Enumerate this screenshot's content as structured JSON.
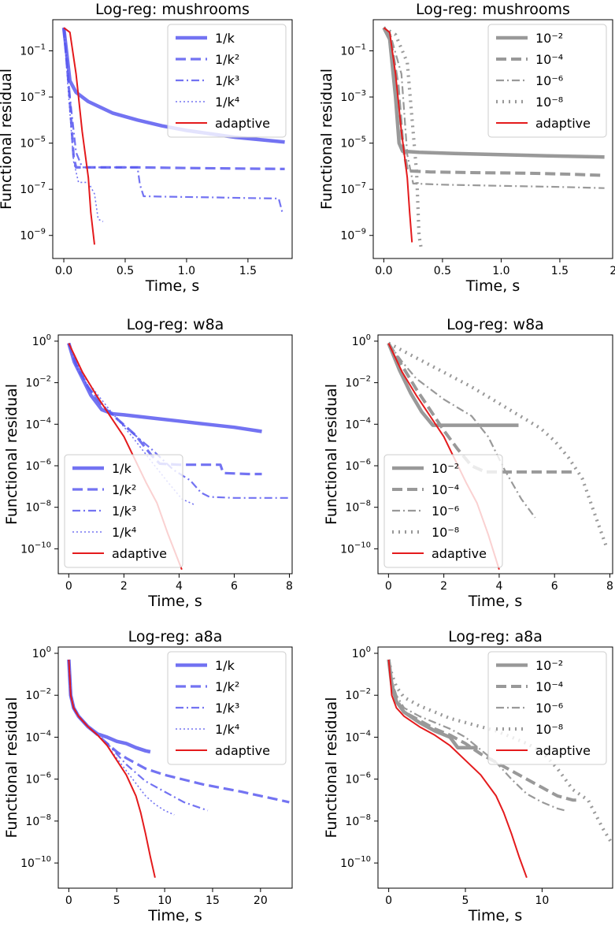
{
  "figure": {
    "ylabel": "Functional residual",
    "xlabel": "Time, s"
  },
  "legend_labels": {
    "blue": [
      "1/k",
      "1/k²",
      "1/k³",
      "1/k⁴",
      "adaptive"
    ],
    "gray": [
      "10⁻²",
      "10⁻⁴",
      "10⁻⁶",
      "10⁻⁸",
      "adaptive"
    ]
  },
  "colors": {
    "blue": "#5a5af0",
    "gray": "#999999",
    "red": "#e41a1c"
  },
  "chart_data": [
    {
      "type": "line",
      "title": "Log-reg: mushrooms",
      "xlabel": "Time, s",
      "ylabel": "Functional residual",
      "xscale": "linear",
      "yscale": "log",
      "xlim": [
        -0.09,
        1.86
      ],
      "ylim_exp": [
        -10,
        0.35
      ],
      "xticks": [
        0.0,
        0.5,
        1.0,
        1.5
      ],
      "xtick_labels": [
        "0.0",
        "0.5",
        "1.0",
        "1.5"
      ],
      "yticks_exp": [
        -9,
        -7,
        -5,
        -3,
        -1
      ],
      "legend_position": "upper right",
      "legend_style": "blue",
      "series": [
        {
          "name": "1/k",
          "x": [
            0.0,
            0.05,
            0.1,
            0.2,
            0.4,
            0.6,
            0.8,
            1.0,
            1.2,
            1.4,
            1.6,
            1.8
          ],
          "y_exp": [
            0.0,
            -2.3,
            -2.8,
            -3.2,
            -3.7,
            -4.0,
            -4.25,
            -4.45,
            -4.6,
            -4.75,
            -4.85,
            -4.95
          ]
        },
        {
          "name": "1/k²",
          "x": [
            0.0,
            0.04,
            0.08,
            0.1,
            0.3,
            0.6,
            1.0,
            1.4,
            1.8
          ],
          "y_exp": [
            0.0,
            -2.5,
            -5.6,
            -6.05,
            -6.05,
            -6.05,
            -6.08,
            -6.1,
            -6.12
          ]
        },
        {
          "name": "1/k³",
          "x": [
            0.0,
            0.05,
            0.1,
            0.15,
            0.5,
            0.6,
            0.62,
            0.65,
            0.8,
            1.2,
            1.5,
            1.75,
            1.78
          ],
          "y_exp": [
            0.0,
            -3.0,
            -5.4,
            -6.05,
            -6.05,
            -6.05,
            -6.8,
            -7.3,
            -7.32,
            -7.35,
            -7.38,
            -7.4,
            -8.0
          ]
        },
        {
          "name": "1/k⁴",
          "x": [
            0.0,
            0.04,
            0.08,
            0.12,
            0.2,
            0.25,
            0.28,
            0.32
          ],
          "y_exp": [
            0.0,
            -3.0,
            -5.8,
            -6.7,
            -6.7,
            -7.2,
            -8.3,
            -8.4
          ]
        },
        {
          "name": "adaptive",
          "x": [
            0.0,
            0.05,
            0.1,
            0.15,
            0.2,
            0.22,
            0.25
          ],
          "y_exp": [
            0.0,
            -0.2,
            -2.0,
            -4.5,
            -6.5,
            -8.0,
            -9.4
          ]
        }
      ]
    },
    {
      "type": "line",
      "title": "Log-reg: mushrooms",
      "xlabel": "Time, s",
      "ylabel": "Functional residual",
      "xscale": "linear",
      "yscale": "log",
      "xlim": [
        -0.09,
        1.95
      ],
      "ylim_exp": [
        -10,
        0.35
      ],
      "xticks": [
        0.0,
        0.5,
        1.0,
        1.5,
        2.0
      ],
      "xtick_labels": [
        "0.0",
        "0.5",
        "1.0",
        "1.5",
        "2.0"
      ],
      "yticks_exp": [
        -9,
        -7,
        -5,
        -3,
        -1
      ],
      "legend_position": "upper right",
      "legend_style": "gray",
      "series": [
        {
          "name": "10⁻²",
          "x": [
            0.0,
            0.05,
            0.1,
            0.13,
            0.16,
            0.3,
            0.6,
            1.0,
            1.4,
            1.88
          ],
          "y_exp": [
            0.0,
            -0.5,
            -3.0,
            -5.0,
            -5.35,
            -5.4,
            -5.45,
            -5.5,
            -5.55,
            -5.6
          ]
        },
        {
          "name": "10⁻⁴",
          "x": [
            0.0,
            0.05,
            0.12,
            0.16,
            0.2,
            0.4,
            0.8,
            1.2,
            1.6,
            1.88
          ],
          "y_exp": [
            0.0,
            -0.3,
            -2.5,
            -5.0,
            -6.2,
            -6.25,
            -6.28,
            -6.3,
            -6.35,
            -6.4
          ]
        },
        {
          "name": "10⁻⁶",
          "x": [
            0.0,
            0.05,
            0.15,
            0.2,
            0.25,
            0.5,
            1.0,
            1.5,
            1.88
          ],
          "y_exp": [
            0.0,
            -0.2,
            -2.0,
            -5.5,
            -6.75,
            -6.8,
            -6.85,
            -6.9,
            -6.95
          ]
        },
        {
          "name": "10⁻⁸",
          "x": [
            0.0,
            0.1,
            0.2,
            0.28,
            0.3,
            0.32
          ],
          "y_exp": [
            0.0,
            -0.3,
            -1.5,
            -6.3,
            -9.0,
            -9.6
          ]
        },
        {
          "name": "adaptive",
          "x": [
            0.0,
            0.05,
            0.1,
            0.15,
            0.2,
            0.22,
            0.24
          ],
          "y_exp": [
            0.0,
            -0.2,
            -2.0,
            -4.5,
            -6.5,
            -8.0,
            -9.3
          ]
        }
      ]
    },
    {
      "type": "line",
      "title": "Log-reg: w8a",
      "xlabel": "Time, s",
      "ylabel": "Functional residual",
      "xscale": "linear",
      "yscale": "log",
      "xlim": [
        -0.38,
        8.1
      ],
      "ylim_exp": [
        -11.2,
        0.3
      ],
      "xticks": [
        0,
        2,
        4,
        6,
        8
      ],
      "xtick_labels": [
        "0",
        "2",
        "4",
        "6",
        "8"
      ],
      "yticks_exp": [
        0,
        -2,
        -4,
        -6,
        -8,
        -10
      ],
      "legend_position": "lower left",
      "legend_style": "blue",
      "series": [
        {
          "name": "1/k",
          "x": [
            0.0,
            0.2,
            0.5,
            0.8,
            1.2,
            1.6,
            2.0,
            3.0,
            4.0,
            5.0,
            6.0,
            7.0
          ],
          "y_exp": [
            -0.1,
            -1.0,
            -1.8,
            -2.6,
            -3.3,
            -3.5,
            -3.55,
            -3.7,
            -3.85,
            -4.0,
            -4.15,
            -4.35
          ]
        },
        {
          "name": "1/k²",
          "x": [
            0.0,
            0.3,
            0.7,
            1.2,
            1.8,
            2.4,
            3.0,
            3.3,
            4.0,
            5.0,
            5.5,
            5.6,
            6.5,
            7.0
          ],
          "y_exp": [
            -0.1,
            -1.2,
            -2.2,
            -3.1,
            -3.8,
            -4.5,
            -5.5,
            -5.9,
            -5.95,
            -5.95,
            -5.95,
            -6.35,
            -6.4,
            -6.4
          ]
        },
        {
          "name": "1/k³",
          "x": [
            0.0,
            0.3,
            0.8,
            1.4,
            2.2,
            3.0,
            3.8,
            4.4,
            4.8,
            5.1,
            6.0,
            7.0,
            8.0
          ],
          "y_exp": [
            -0.1,
            -1.3,
            -2.4,
            -3.3,
            -4.3,
            -5.2,
            -6.2,
            -6.7,
            -7.3,
            -7.5,
            -7.55,
            -7.55,
            -7.55
          ]
        },
        {
          "name": "1/k⁴",
          "x": [
            0.0,
            0.5,
            1.0,
            1.6,
            2.3,
            3.0,
            3.6,
            4.1,
            4.6
          ],
          "y_exp": [
            -0.1,
            -1.6,
            -2.5,
            -3.5,
            -4.6,
            -5.8,
            -6.8,
            -7.6,
            -7.9
          ]
        },
        {
          "name": "adaptive",
          "x": [
            0.0,
            0.5,
            1.0,
            1.5,
            2.0,
            2.4,
            2.8,
            3.2,
            3.6,
            4.1
          ],
          "y_exp": [
            -0.1,
            -1.5,
            -2.6,
            -3.6,
            -4.6,
            -5.7,
            -6.8,
            -7.8,
            -9.3,
            -11.0
          ]
        }
      ]
    },
    {
      "type": "line",
      "title": "Log-reg: w8a",
      "xlabel": "Time, s",
      "ylabel": "Functional residual",
      "xscale": "linear",
      "yscale": "log",
      "xlim": [
        -0.38,
        8.1
      ],
      "ylim_exp": [
        -11.2,
        0.3
      ],
      "xticks": [
        0,
        2,
        4,
        6,
        8
      ],
      "xtick_labels": [
        "0",
        "2",
        "4",
        "6",
        "8"
      ],
      "yticks_exp": [
        0,
        -2,
        -4,
        -6,
        -8,
        -10
      ],
      "legend_position": "lower left",
      "legend_style": "gray",
      "series": [
        {
          "name": "10⁻²",
          "x": [
            0.0,
            0.4,
            0.8,
            1.2,
            1.6,
            2.0,
            3.0,
            4.0,
            4.7
          ],
          "y_exp": [
            -0.1,
            -1.4,
            -2.5,
            -3.4,
            -4.05,
            -4.05,
            -4.05,
            -4.05,
            -4.05
          ]
        },
        {
          "name": "10⁻⁴",
          "x": [
            0.0,
            0.5,
            1.0,
            1.5,
            2.0,
            2.5,
            3.0,
            3.5,
            4.0,
            5.0,
            6.0,
            6.7
          ],
          "y_exp": [
            -0.1,
            -1.2,
            -2.3,
            -3.3,
            -4.3,
            -5.2,
            -6.0,
            -6.3,
            -6.3,
            -6.3,
            -6.3,
            -6.3
          ]
        },
        {
          "name": "10⁻⁶",
          "x": [
            0.0,
            0.5,
            1.0,
            2.0,
            3.0,
            3.6,
            4.2,
            4.8,
            5.3
          ],
          "y_exp": [
            -0.1,
            -1.0,
            -1.8,
            -2.8,
            -3.6,
            -4.6,
            -6.2,
            -7.6,
            -8.5
          ]
        },
        {
          "name": "10⁻⁸",
          "x": [
            0.0,
            1.0,
            2.0,
            3.0,
            4.0,
            4.5,
            5.0,
            5.5,
            6.0,
            6.5,
            7.0,
            7.5,
            7.9
          ],
          "y_exp": [
            -0.1,
            -0.8,
            -1.5,
            -2.2,
            -3.0,
            -3.4,
            -3.8,
            -4.2,
            -4.8,
            -5.6,
            -6.6,
            -8.5,
            -10.0
          ]
        },
        {
          "name": "adaptive",
          "x": [
            0.0,
            0.5,
            1.0,
            1.5,
            2.0,
            2.4,
            2.8,
            3.2,
            3.6,
            4.0
          ],
          "y_exp": [
            -0.1,
            -1.5,
            -2.6,
            -3.6,
            -4.6,
            -5.7,
            -6.8,
            -7.8,
            -9.3,
            -11.0
          ]
        }
      ]
    },
    {
      "type": "line",
      "title": "Log-reg: a8a",
      "xlabel": "Time, s",
      "ylabel": "Functional residual",
      "xscale": "linear",
      "yscale": "log",
      "xlim": [
        -1.1,
        23.3
      ],
      "ylim_exp": [
        -11.2,
        0.3
      ],
      "xticks": [
        0,
        5,
        10,
        15,
        20
      ],
      "xtick_labels": [
        "0",
        "5",
        "10",
        "15",
        "20"
      ],
      "yticks_exp": [
        0,
        -2,
        -4,
        -6,
        -8,
        -10
      ],
      "legend_position": "upper right",
      "legend_style": "blue",
      "series": [
        {
          "name": "1/k",
          "x": [
            0.0,
            0.2,
            0.5,
            1.0,
            2.0,
            3.0,
            4.0,
            5.0,
            6.0,
            7.0,
            8.0,
            8.5
          ],
          "y_exp": [
            -0.3,
            -2.0,
            -2.6,
            -3.0,
            -3.5,
            -3.85,
            -4.0,
            -4.2,
            -4.3,
            -4.5,
            -4.65,
            -4.7
          ]
        },
        {
          "name": "1/k²",
          "x": [
            0.0,
            0.2,
            0.5,
            1.0,
            2.0,
            3.0,
            4.0,
            5.0,
            6.0,
            8.0,
            10.0,
            14.0,
            18.0,
            22.0,
            23.0
          ],
          "y_exp": [
            -0.3,
            -2.0,
            -2.6,
            -3.0,
            -3.5,
            -3.9,
            -4.3,
            -4.7,
            -5.0,
            -5.5,
            -5.8,
            -6.25,
            -6.6,
            -7.0,
            -7.1
          ]
        },
        {
          "name": "1/k³",
          "x": [
            0.0,
            0.2,
            0.5,
            1.0,
            2.0,
            3.0,
            4.0,
            5.0,
            6.0,
            7.0,
            8.0,
            10.0,
            12.0,
            14.5
          ],
          "y_exp": [
            -0.3,
            -2.0,
            -2.6,
            -3.0,
            -3.5,
            -3.9,
            -4.3,
            -4.8,
            -5.3,
            -5.7,
            -6.1,
            -6.6,
            -7.1,
            -7.5
          ]
        },
        {
          "name": "1/k⁴",
          "x": [
            0.0,
            0.2,
            0.5,
            1.0,
            2.0,
            3.0,
            4.0,
            5.0,
            6.0,
            7.0,
            8.0,
            9.0,
            10.0,
            11.0
          ],
          "y_exp": [
            -0.3,
            -2.0,
            -2.6,
            -3.0,
            -3.5,
            -3.9,
            -4.4,
            -5.0,
            -5.6,
            -6.2,
            -6.8,
            -7.2,
            -7.5,
            -7.7
          ]
        },
        {
          "name": "adaptive",
          "x": [
            0.0,
            0.2,
            0.5,
            1.0,
            2.0,
            3.0,
            4.0,
            5.0,
            6.0,
            7.0,
            7.5,
            8.0,
            8.5,
            9.0
          ],
          "y_exp": [
            -0.3,
            -2.0,
            -2.6,
            -3.0,
            -3.5,
            -3.9,
            -4.4,
            -5.1,
            -5.8,
            -6.8,
            -7.6,
            -8.6,
            -9.7,
            -10.7
          ]
        }
      ]
    },
    {
      "type": "line",
      "title": "Log-reg: a8a",
      "xlabel": "Time, s",
      "ylabel": "Functional residual",
      "xscale": "linear",
      "yscale": "log",
      "xlim": [
        -0.7,
        14.6
      ],
      "ylim_exp": [
        -11.2,
        0.3
      ],
      "xticks": [
        0,
        5,
        10
      ],
      "xtick_labels": [
        "0",
        "5",
        "10"
      ],
      "yticks_exp": [
        0,
        -2,
        -4,
        -6,
        -8,
        -10
      ],
      "legend_position": "upper right",
      "legend_style": "gray",
      "series": [
        {
          "name": "10⁻²",
          "x": [
            0.0,
            0.2,
            0.5,
            1.0,
            2.0,
            3.0,
            4.0,
            4.5,
            5.0,
            5.8
          ],
          "y_exp": [
            -0.3,
            -1.5,
            -2.3,
            -2.8,
            -3.3,
            -3.7,
            -4.0,
            -4.5,
            -4.5,
            -4.5
          ]
        },
        {
          "name": "10⁻⁴",
          "x": [
            0.0,
            0.2,
            0.5,
            1.0,
            2.0,
            3.0,
            4.0,
            5.0,
            6.0,
            7.0,
            8.0,
            9.0,
            10.0,
            11.0,
            12.0,
            12.5
          ],
          "y_exp": [
            -0.3,
            -1.4,
            -2.2,
            -2.8,
            -3.2,
            -3.6,
            -3.9,
            -4.3,
            -4.8,
            -5.2,
            -5.6,
            -6.0,
            -6.4,
            -6.8,
            -7.0,
            -7.0
          ]
        },
        {
          "name": "10⁻⁶",
          "x": [
            0.0,
            0.2,
            0.5,
            1.0,
            2.0,
            3.0,
            4.0,
            5.0,
            6.0,
            7.0,
            8.0,
            9.0,
            10.0,
            11.0,
            11.5
          ],
          "y_exp": [
            -0.3,
            -1.3,
            -2.0,
            -2.6,
            -3.0,
            -3.3,
            -3.6,
            -4.0,
            -4.6,
            -5.2,
            -6.0,
            -6.7,
            -7.1,
            -7.4,
            -7.5
          ]
        },
        {
          "name": "10⁻⁸",
          "x": [
            0.0,
            0.2,
            0.5,
            1.0,
            2.0,
            3.0,
            4.0,
            5.0,
            6.0,
            7.0,
            8.0,
            9.0,
            10.0,
            11.0,
            12.0,
            13.0,
            14.0,
            14.5
          ],
          "y_exp": [
            -0.3,
            -1.0,
            -1.6,
            -2.1,
            -2.5,
            -2.8,
            -3.1,
            -3.3,
            -3.5,
            -3.7,
            -4.0,
            -4.3,
            -4.7,
            -5.5,
            -6.5,
            -7.0,
            -8.4,
            -9.0
          ]
        },
        {
          "name": "adaptive",
          "x": [
            0.0,
            0.2,
            0.5,
            1.0,
            2.0,
            3.0,
            4.0,
            5.0,
            6.0,
            7.0,
            7.5,
            8.0,
            8.5,
            9.0
          ],
          "y_exp": [
            -0.3,
            -2.0,
            -2.6,
            -3.0,
            -3.5,
            -3.9,
            -4.4,
            -5.1,
            -5.8,
            -6.8,
            -7.6,
            -8.6,
            -9.7,
            -10.7
          ]
        }
      ]
    }
  ]
}
